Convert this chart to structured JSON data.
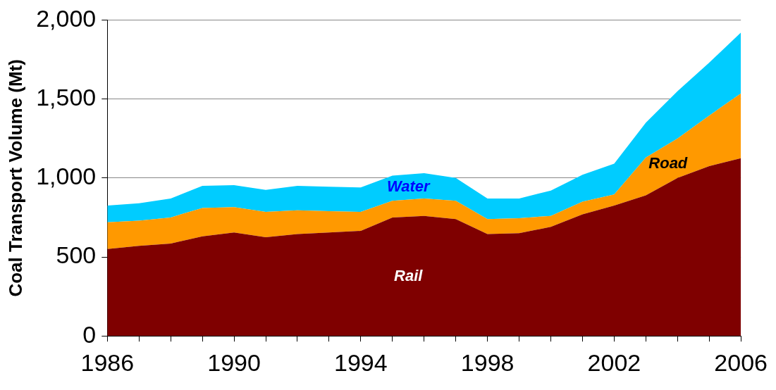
{
  "chart_data": {
    "type": "area",
    "stacked": true,
    "ylabel": "Coal Transport Volume (Mt)",
    "x": [
      1986,
      1987,
      1988,
      1989,
      1990,
      1991,
      1992,
      1993,
      1994,
      1995,
      1996,
      1997,
      1998,
      1999,
      2000,
      2001,
      2002,
      2003,
      2004,
      2005,
      2006
    ],
    "series": [
      {
        "name": "Rail",
        "color": "#7f0000",
        "values": [
          550,
          570,
          585,
          630,
          655,
          625,
          645,
          655,
          665,
          750,
          760,
          740,
          645,
          650,
          690,
          770,
          825,
          890,
          1000,
          1075,
          1125
        ]
      },
      {
        "name": "Road",
        "color": "#ff9900",
        "values": [
          170,
          160,
          165,
          180,
          160,
          160,
          150,
          135,
          120,
          105,
          110,
          115,
          95,
          95,
          70,
          80,
          70,
          240,
          250,
          320,
          410
        ]
      },
      {
        "name": "Water",
        "color": "#00ccff",
        "values": [
          105,
          110,
          120,
          140,
          140,
          140,
          155,
          155,
          155,
          160,
          160,
          145,
          130,
          125,
          160,
          170,
          195,
          220,
          300,
          335,
          385
        ]
      }
    ],
    "xlim": [
      1986,
      2006
    ],
    "xticks": [
      1986,
      {
        "value": 1987,
        "label": null
      },
      {
        "value": 1988,
        "label": null
      },
      {
        "value": 1989,
        "label": null
      },
      1990,
      {
        "value": 1991,
        "label": null
      },
      {
        "value": 1992,
        "label": null
      },
      {
        "value": 1993,
        "label": null
      },
      1994,
      {
        "value": 1995,
        "label": null
      },
      {
        "value": 1996,
        "label": null
      },
      {
        "value": 1997,
        "label": null
      },
      1998,
      {
        "value": 1999,
        "label": null
      },
      {
        "value": 2000,
        "label": null
      },
      {
        "value": 2001,
        "label": null
      },
      2002,
      {
        "value": 2003,
        "label": null
      },
      {
        "value": 2004,
        "label": null
      },
      {
        "value": 2005,
        "label": null
      },
      2006
    ],
    "ylim": [
      0,
      2000
    ],
    "yticks": [
      0,
      {
        "value": 500,
        "label": "500"
      },
      {
        "value": 1000,
        "label": "1,000"
      },
      {
        "value": 1500,
        "label": "1,500"
      },
      {
        "value": 2000,
        "label": "2,000"
      }
    ],
    "grid": "y",
    "legend": false
  }
}
